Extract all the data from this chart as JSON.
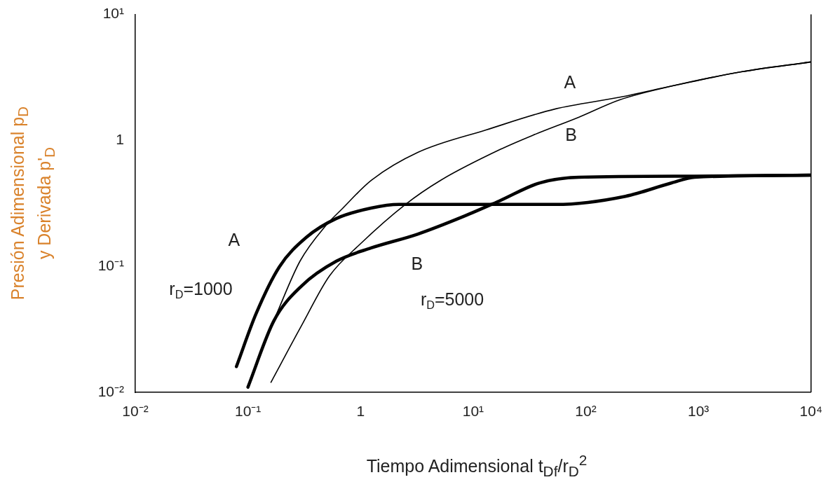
{
  "chart_data": {
    "type": "line",
    "xlabel": "Tiempo Adimensional t$_{Df}$/r$_{D}$$^{2}$",
    "ylabel": "Presión Adimensional p$_{D}$\ny Derivada p'$_{D}$",
    "log": "xy",
    "grid": false,
    "legend": false,
    "marker": "none",
    "line_style": "solid",
    "xlim": [
      0.01,
      10000
    ],
    "ylim": [
      0.01,
      10
    ],
    "xticks": [
      {
        "value": 0.01,
        "label": "10⁻²"
      },
      {
        "value": 0.1,
        "label": "10⁻¹"
      },
      1,
      {
        "value": 10,
        "label": "10¹"
      },
      {
        "value": 100,
        "label": "10²"
      },
      {
        "value": 1000,
        "label": "10³"
      },
      {
        "value": 10000,
        "label": "10⁴"
      }
    ],
    "yticks": [
      {
        "value": 0.01,
        "label": "10⁻²"
      },
      {
        "value": 0.1,
        "label": "10⁻¹"
      },
      1,
      {
        "value": 10,
        "label": "10¹"
      }
    ],
    "series": [
      {
        "color": "#000000",
        "x": [
          0.13,
          0.18,
          0.29,
          0.49,
          0.67,
          1.24,
          3.2,
          13,
          54,
          200,
          580,
          2400,
          10000
        ],
        "values": [
          0.021,
          0.042,
          0.11,
          0.21,
          0.28,
          0.48,
          0.8,
          1.21,
          1.78,
          2.2,
          2.7,
          3.5,
          4.2
        ]
      },
      {
        "color": "#000000",
        "x": [
          0.16,
          0.3,
          0.53,
          0.99,
          2.5,
          5.1,
          17.5,
          34,
          87,
          200,
          580,
          2400,
          10000
        ],
        "values": [
          0.012,
          0.034,
          0.084,
          0.15,
          0.31,
          0.48,
          0.85,
          1.1,
          1.53,
          2.1,
          2.7,
          3.5,
          4.2
        ]
      },
      {
        "color": "#000000",
        "x": [
          0.079,
          0.118,
          0.19,
          0.33,
          0.61,
          1.24,
          2.2,
          13,
          54,
          225,
          580,
          925,
          10000
        ],
        "values": [
          0.016,
          0.042,
          0.099,
          0.17,
          0.24,
          0.29,
          0.31,
          0.31,
          0.31,
          0.36,
          0.46,
          0.51,
          0.53
        ]
      },
      {
        "color": "#000000",
        "x": [
          0.1,
          0.17,
          0.3,
          0.61,
          1.24,
          3.2,
          8.3,
          17,
          39,
          87,
          925,
          10000
        ],
        "values": [
          0.011,
          0.037,
          0.07,
          0.11,
          0.14,
          0.18,
          0.25,
          0.33,
          0.46,
          0.51,
          0.52,
          0.53
        ]
      }
    ],
    "annotations": [
      "A",
      "B",
      "A",
      "r$_{D}$=1000",
      "B",
      "r$_{D}$=5000"
    ]
  }
}
